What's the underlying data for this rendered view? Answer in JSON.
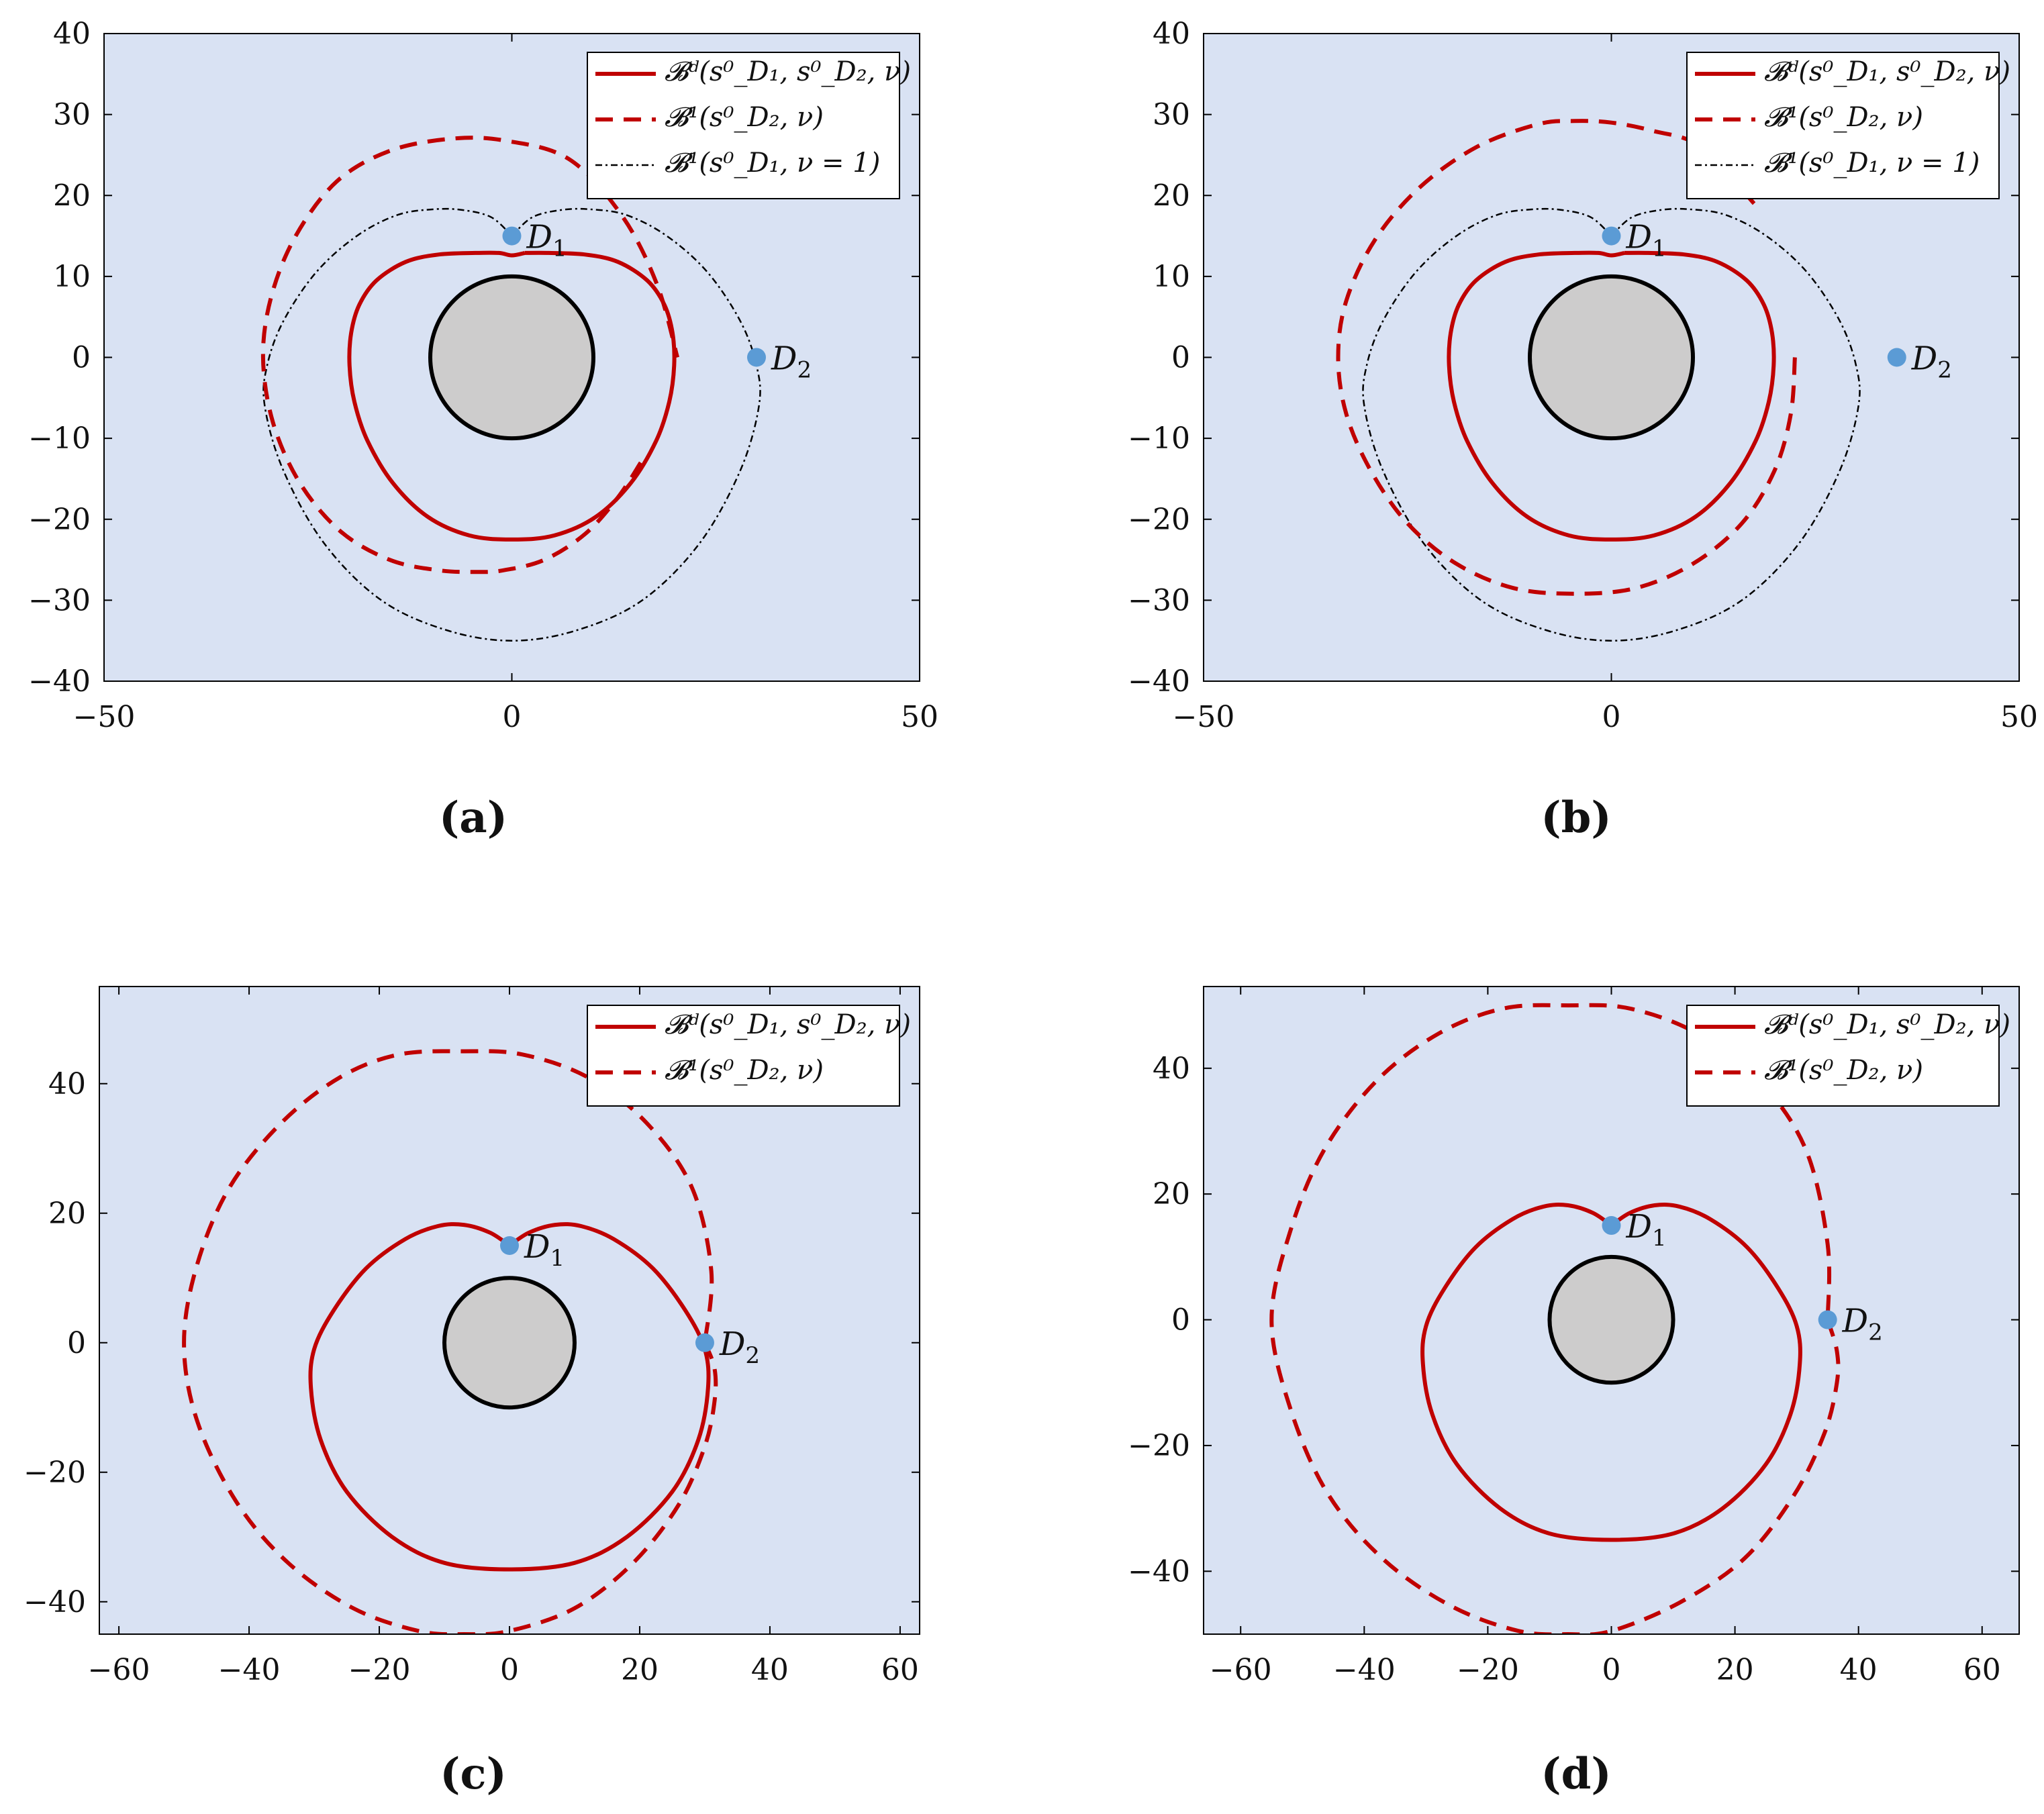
{
  "colors": {
    "background": "#d9e2f3",
    "axes": "#000000",
    "accent_red": "#c00000",
    "black_curve": "#000000",
    "obstacle_fill": "#cdcccc",
    "point": "#5b9bd5"
  },
  "chart_data": [
    {
      "type": "line",
      "caption": "(a)",
      "xlim": [
        -50,
        50
      ],
      "ylim": [
        -40,
        40
      ],
      "xticks": [
        -50,
        0,
        50
      ],
      "yticks": [
        -40,
        -30,
        -20,
        -10,
        0,
        10,
        20,
        30,
        40
      ],
      "grid": false,
      "legend_position": "top-right",
      "obstacle": {
        "cx": 0,
        "cy": 0,
        "r": 10
      },
      "points": [
        {
          "name": "D1",
          "sub": "1",
          "x": 0,
          "y": 15
        },
        {
          "name": "D2",
          "sub": "2",
          "x": 30,
          "y": 0
        }
      ],
      "series": [
        {
          "name": "𝓑ᵈ(s⁰_D₁, s⁰_D₂, ν)",
          "style": "solid-red",
          "x": [
            1.6,
            4.5,
            9,
            13,
            16.6,
            18.7,
            19.7,
            19.9,
            19.3,
            17.7,
            14.6,
            10.3,
            5.2,
            0,
            -5.2,
            -10.3,
            -14.6,
            -17.7,
            -19.3,
            -19.9,
            -19.7,
            -18.7,
            -16.6,
            -13,
            -9,
            -4.5,
            -1.6,
            0,
            1.6
          ],
          "y": [
            12.9,
            12.9,
            12.7,
            11.8,
            9.5,
            6.5,
            3,
            -1,
            -5.5,
            -10.3,
            -15.5,
            -19.7,
            -22,
            -22.5,
            -22,
            -19.7,
            -15.5,
            -10.3,
            -5.5,
            -1,
            3,
            6.5,
            9.5,
            11.8,
            12.7,
            12.9,
            12.9,
            12.6,
            12.9
          ]
        },
        {
          "name": "𝓑¹(s⁰_D₂, ν)",
          "style": "dashed-red",
          "x": [
            15.8,
            13,
            9,
            4,
            -1,
            -4.3,
            -9,
            -15,
            -21,
            -26,
            -29.3,
            -30.5,
            -29.5,
            -26.5,
            -21.5,
            -15,
            -7.5,
            -1,
            7,
            13.5,
            17.8,
            20.3
          ],
          "y": [
            -13,
            -17.3,
            -21.8,
            -25,
            -26.3,
            -26.5,
            -26.3,
            -25,
            -21.5,
            -15.5,
            -8,
            0,
            7.5,
            15,
            21.7,
            25.5,
            27,
            26.8,
            24.5,
            17.5,
            9,
            0
          ]
        },
        {
          "name": "𝓑¹(s⁰_D₁, ν = 1)",
          "style": "dashdot-black",
          "x": [
            0,
            2.5,
            6,
            9.5,
            14,
            19,
            24,
            28,
            30,
            30.3,
            28,
            23,
            16,
            8,
            0,
            -8,
            -16,
            -23,
            -28,
            -30.3,
            -30,
            -28,
            -24,
            -19,
            -14,
            -9.5,
            -6,
            -2.5,
            0
          ],
          "y": [
            15,
            17.3,
            18.2,
            18.3,
            17.6,
            15,
            10.5,
            4.5,
            -1,
            -6,
            -14,
            -23,
            -30,
            -33.7,
            -35,
            -33.7,
            -30,
            -23,
            -14,
            -6,
            -1,
            4.5,
            10.5,
            15,
            17.6,
            18.3,
            18.2,
            17.3,
            15
          ]
        }
      ]
    },
    {
      "type": "line",
      "caption": "(b)",
      "xlim": [
        -50,
        50
      ],
      "ylim": [
        -40,
        40
      ],
      "xticks": [
        -50,
        0,
        50
      ],
      "yticks": [
        -40,
        -30,
        -20,
        -10,
        0,
        10,
        20,
        30,
        40
      ],
      "grid": false,
      "legend_position": "top-right",
      "obstacle": {
        "cx": 0,
        "cy": 0,
        "r": 10
      },
      "points": [
        {
          "name": "D1",
          "sub": "1",
          "x": 0,
          "y": 15
        },
        {
          "name": "D2",
          "sub": "2",
          "x": 35,
          "y": 0
        }
      ],
      "series": [
        {
          "name": "𝓑ᵈ(s⁰_D₁, s⁰_D₂, ν)",
          "style": "solid-red",
          "x": [
            1.6,
            4.5,
            9,
            13,
            16.6,
            18.7,
            19.7,
            19.9,
            19.3,
            17.7,
            14.6,
            10.3,
            5.2,
            0,
            -5.2,
            -10.3,
            -14.6,
            -17.7,
            -19.3,
            -19.9,
            -19.7,
            -18.7,
            -16.6,
            -13,
            -9,
            -4.5,
            -1.6,
            0,
            1.6
          ],
          "y": [
            12.9,
            12.9,
            12.7,
            11.8,
            9.5,
            6.5,
            3,
            -1,
            -5.5,
            -10.3,
            -15.5,
            -19.7,
            -22,
            -22.5,
            -22,
            -19.7,
            -15.5,
            -10.3,
            -5.5,
            -1,
            3,
            6.5,
            9.5,
            11.8,
            12.7,
            12.9,
            12.9,
            12.6,
            12.9
          ]
        },
        {
          "name": "𝓑¹(s⁰_D₂, ν)",
          "style": "dashed-red",
          "x": [
            22.5,
            22,
            20,
            16,
            10,
            3,
            -4.5,
            -12,
            -19,
            -25,
            -29.5,
            -32.5,
            -33.5,
            -32.5,
            -29,
            -23.5,
            -16.5,
            -9,
            -4.5,
            0,
            5,
            11,
            17.5
          ],
          "y": [
            0,
            -7,
            -14,
            -20.5,
            -25.5,
            -28.5,
            -29.2,
            -28.5,
            -25.5,
            -20.5,
            -14,
            -7,
            0,
            7,
            14.5,
            21,
            26,
            28.8,
            29.2,
            29,
            28,
            26,
            19
          ]
        },
        {
          "name": "𝓑¹(s⁰_D₁, ν = 1)",
          "style": "dashdot-black",
          "x": [
            0,
            2.5,
            6,
            9.5,
            14,
            19,
            24,
            28,
            30,
            30.3,
            28,
            23,
            16,
            8,
            0,
            -8,
            -16,
            -23,
            -28,
            -30.3,
            -30,
            -28,
            -24,
            -19,
            -14,
            -9.5,
            -6,
            -2.5,
            0
          ],
          "y": [
            15,
            17.3,
            18.2,
            18.3,
            17.6,
            15,
            10.5,
            4.5,
            -1,
            -6,
            -14,
            -23,
            -30,
            -33.7,
            -35,
            -33.7,
            -30,
            -23,
            -14,
            -6,
            -1,
            4.5,
            10.5,
            15,
            17.6,
            18.3,
            18.2,
            17.3,
            15
          ]
        }
      ]
    },
    {
      "type": "line",
      "caption": "(c)",
      "xlim": [
        -63,
        63
      ],
      "ylim": [
        -45,
        55
      ],
      "xticks": [
        -60,
        -40,
        -20,
        0,
        20,
        40,
        60
      ],
      "yticks": [
        -40,
        -20,
        0,
        20,
        40
      ],
      "grid": false,
      "legend_position": "top-right",
      "obstacle": {
        "cx": 0,
        "cy": 0,
        "r": 10
      },
      "points": [
        {
          "name": "D1",
          "sub": "1",
          "x": 0,
          "y": 15
        },
        {
          "name": "D2",
          "sub": "2",
          "x": 30,
          "y": 0
        }
      ],
      "series": [
        {
          "name": "𝓑ᵈ(s⁰_D₁, s⁰_D₂, ν)",
          "style": "solid-red",
          "x": [
            0,
            3,
            7,
            11,
            16,
            22,
            27,
            30,
            30.5,
            29,
            25,
            18,
            10,
            0,
            -10,
            -18,
            -25,
            -29,
            -30.5,
            -30,
            -27,
            -22,
            -16,
            -11,
            -7,
            -3,
            0
          ],
          "y": [
            15,
            17,
            18.2,
            18,
            16,
            11.5,
            5,
            -1,
            -7,
            -15,
            -23,
            -30,
            -34,
            -35,
            -34,
            -30,
            -23,
            -15,
            -7,
            -1,
            5,
            11.5,
            16,
            18,
            18.2,
            17,
            15
          ]
        },
        {
          "name": "𝓑¹(s⁰_D₂, ν)",
          "style": "dashed-red",
          "x": [
            30,
            31.5,
            31.5,
            30,
            26,
            19,
            10,
            0,
            -7,
            -14,
            -24,
            -34,
            -42,
            -48,
            -50,
            -48,
            -43,
            -35,
            -26,
            -17,
            -7,
            2,
            12,
            21,
            28,
            31,
            30
          ],
          "y": [
            0,
            -4,
            -9,
            -16,
            -25,
            -34,
            -41,
            -44.5,
            -45,
            -44.5,
            -41,
            -34,
            -24.5,
            -12,
            0,
            12,
            24,
            34,
            41,
            44.5,
            45,
            44.5,
            41,
            34,
            24,
            11,
            0
          ]
        }
      ]
    },
    {
      "type": "line",
      "caption": "(d)",
      "xlim": [
        -66,
        66
      ],
      "ylim": [
        -50,
        53
      ],
      "xticks": [
        -60,
        -40,
        -20,
        0,
        20,
        40,
        60
      ],
      "yticks": [
        -40,
        -20,
        0,
        20,
        40
      ],
      "grid": false,
      "legend_position": "top-right",
      "obstacle": {
        "cx": 0,
        "cy": 0,
        "r": 10
      },
      "points": [
        {
          "name": "D1",
          "sub": "1",
          "x": 0,
          "y": 15
        },
        {
          "name": "D2",
          "sub": "2",
          "x": 35,
          "y": 0
        }
      ],
      "series": [
        {
          "name": "𝓑ᵈ(s⁰_D₁, s⁰_D₂, ν)",
          "style": "solid-red",
          "x": [
            0,
            3,
            7,
            11,
            16,
            22,
            27,
            30,
            30.5,
            29,
            25,
            18,
            10,
            0,
            -10,
            -18,
            -25,
            -29,
            -30.5,
            -30,
            -27,
            -22,
            -16,
            -11,
            -7,
            -3,
            0
          ],
          "y": [
            15,
            17,
            18.2,
            18,
            16,
            11.5,
            5,
            -1,
            -7,
            -15,
            -23,
            -30,
            -34,
            -35,
            -34,
            -30,
            -23,
            -15,
            -7,
            -1,
            5,
            11.5,
            16,
            18,
            18.2,
            17,
            15
          ]
        },
        {
          "name": "𝓑¹(s⁰_D₂, ν)",
          "style": "dashed-red",
          "x": [
            35,
            36.5,
            36.5,
            34.5,
            29.5,
            21.5,
            11,
            0,
            -7,
            -15,
            -26,
            -37,
            -46,
            -52,
            -55,
            -52,
            -46.5,
            -38,
            -28,
            -17.5,
            -7,
            3,
            14,
            24,
            31.5,
            35,
            35
          ],
          "y": [
            0,
            -5,
            -10,
            -18,
            -28,
            -38,
            -45,
            -49.5,
            -50,
            -49.5,
            -45.5,
            -38,
            -27.5,
            -14,
            0,
            14,
            27,
            38,
            45.5,
            49.5,
            50,
            49.5,
            45.5,
            38,
            27,
            12,
            0
          ]
        }
      ]
    }
  ]
}
